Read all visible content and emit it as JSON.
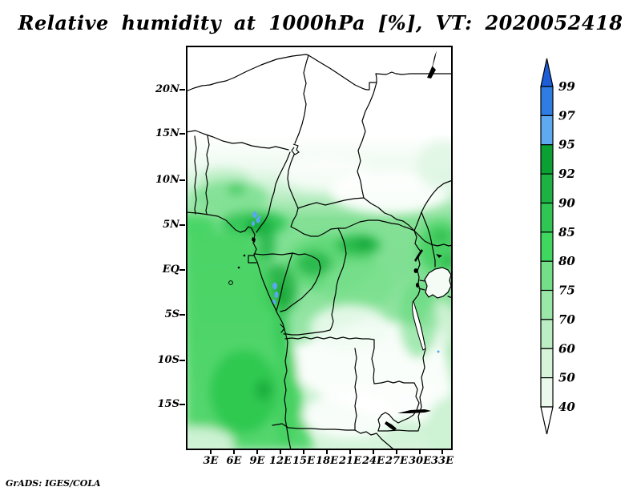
{
  "title": "Relative humidity at 1000hPa [%], VT: 2020052418",
  "attribution": "GrADS: IGES/COLA",
  "chart_data": {
    "type": "heatmap",
    "title": "Relative humidity at 1000hPa [%], VT: 2020052418",
    "variable": "Relative humidity",
    "level": "1000hPa",
    "units": "%",
    "valid_time": "2020052418",
    "region": "Central Africa",
    "grid_on": false,
    "x_axis": {
      "ticks": [
        "3E",
        "6E",
        "9E",
        "12E",
        "15E",
        "18E",
        "21E",
        "24E",
        "27E",
        "30E",
        "33E"
      ]
    },
    "y_axis": {
      "ticks": [
        "20N",
        "15N",
        "10N",
        "5N",
        "EQ",
        "5S",
        "10S",
        "15S"
      ]
    },
    "colorbar": {
      "position": "right",
      "labels": [
        "99",
        "97",
        "95",
        "92",
        "90",
        "85",
        "80",
        "75",
        "70",
        "60",
        "50",
        "40"
      ],
      "segment_colors": [
        "#2f7ce2",
        "#5ea9f0",
        "#0aa032",
        "#1db343",
        "#2fc653",
        "#3fd75f",
        "#74df88",
        "#9ae7a7",
        "#bceec4",
        "#d6f4da",
        "#eaf9ec"
      ],
      "arrow_top_color": "#1b5ed8",
      "arrow_bottom_color": "#ffffff"
    },
    "field_features": [
      {
        "region": "Sahara / Sahel north of ~12N (Niger, Chad, Sudan)",
        "value_pct": "< 40 (white)"
      },
      {
        "region": "Southern Nigeria and Guinea coast belt (4N-10N)",
        "value_pct": "60-90"
      },
      {
        "region": "Cameroon coast / Mt Cameroon spots",
        "value_pct": "95-99 (blue patches)"
      },
      {
        "region": "Gabon interior spots",
        "value_pct": "95-97 (blue patches)"
      },
      {
        "region": "Congo basin",
        "value_pct": "75-90"
      },
      {
        "region": "NE DRC patch near 21E-24E, 1N-3N",
        "value_pct": "90-95"
      },
      {
        "region": "Atlantic ocean SW of Angola coast",
        "value_pct": "80-92"
      },
      {
        "region": "Southern DRC / interior Angola / Zambia",
        "value_pct": "< 50 (white)"
      },
      {
        "region": "Lake Victoria surroundings",
        "value_pct": "80-92"
      },
      {
        "region": "Far southeast corner",
        "value_pct": "50-70"
      }
    ],
    "layout": {
      "background_color": "#ffffff",
      "frame_color": "#000000"
    }
  }
}
